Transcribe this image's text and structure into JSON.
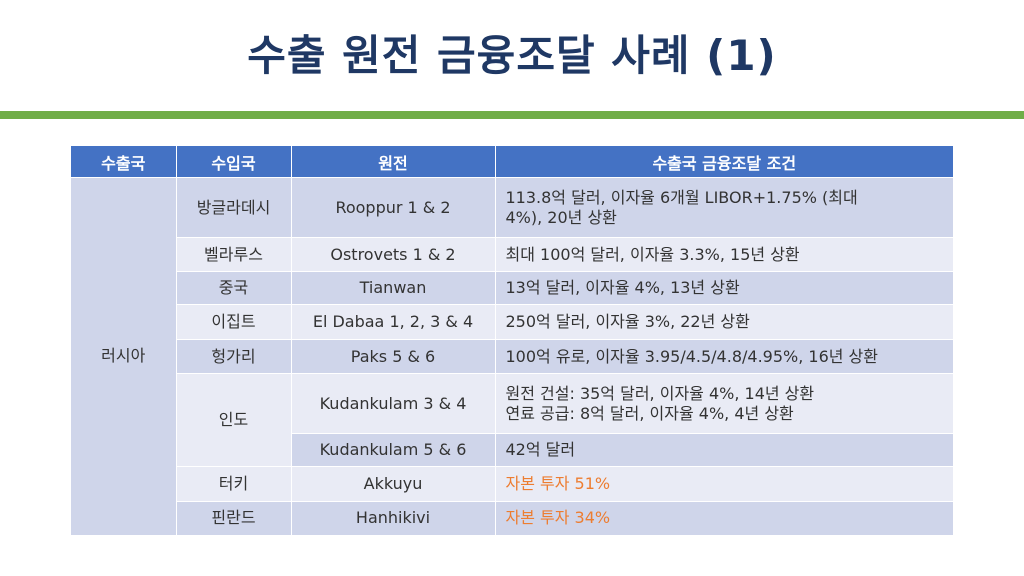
{
  "title": "수출 원전 금융조달 사례 (1)",
  "colors": {
    "title": "#1f3864",
    "rule": "#70ad47",
    "header": "#4472c4",
    "row_dark": "#cfd5ea",
    "row_light": "#e9ebf5",
    "highlight": "#ed7d31"
  },
  "table": {
    "headers": [
      "수출국",
      "수입국",
      "원전",
      "수출국 금융조달 조건"
    ],
    "exporter": "러시아",
    "rows": [
      {
        "importer": "방글라데시",
        "plant": "Rooppur 1 & 2",
        "condition_lines": [
          "113.8억 달러, 이자율 6개월 LIBOR+1.75% (최대",
          "4%), 20년 상환"
        ]
      },
      {
        "importer": "벨라루스",
        "plant": "Ostrovets 1 & 2",
        "condition_lines": [
          "최대 100억 달러, 이자율 3.3%, 15년 상환"
        ]
      },
      {
        "importer": "중국",
        "plant": "Tianwan",
        "condition_lines": [
          "13억 달러, 이자율 4%, 13년 상환"
        ]
      },
      {
        "importer": "이집트",
        "plant": "El Dabaa 1, 2, 3 & 4",
        "condition_lines": [
          "250억 달러, 이자율 3%, 22년 상환"
        ]
      },
      {
        "importer": "헝가리",
        "plant": "Paks 5 & 6",
        "condition_lines": [
          "100억 유로, 이자율 3.95/4.5/4.8/4.95%, 16년 상환"
        ]
      },
      {
        "importer": "인도",
        "plant": "Kudankulam 3 & 4",
        "condition_lines": [
          "원전 건설: 35억 달러, 이자율 4%, 14년 상환",
          "연료 공급: 8억 달러, 이자율 4%, 4년 상환"
        ]
      },
      {
        "importer": "",
        "plant": "Kudankulam 5 & 6",
        "condition_lines": [
          "42억 달러"
        ]
      },
      {
        "importer": "터키",
        "plant": "Akkuyu",
        "condition_lines": [
          "자본 투자 51%"
        ]
      },
      {
        "importer": "핀란드",
        "plant": "Hanhikivi",
        "condition_lines": [
          "자본 투자 34%"
        ]
      }
    ]
  }
}
